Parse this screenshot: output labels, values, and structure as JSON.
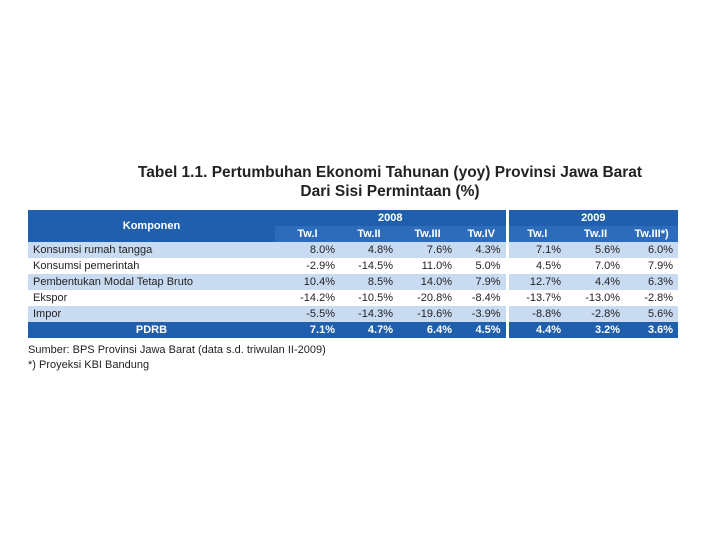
{
  "header": {
    "title_line1": "Tabel 1.1. Pertumbuhan Ekonomi Tahunan (yoy) Provinsi Jawa Barat",
    "title_line2": "Dari Sisi Permintaan (%)"
  },
  "table": {
    "stub_header": "Komponen",
    "groups": [
      {
        "label": "2008",
        "span": 4
      },
      {
        "label": "2009",
        "span": 3
      }
    ],
    "columns": [
      "Tw.I",
      "Tw.II",
      "Tw.III",
      "Tw.IV",
      "Tw.I",
      "Tw.II",
      "Tw.III*)"
    ],
    "rows": [
      [
        "Konsumsi rumah tangga",
        "8.0%",
        "4.8%",
        "7.6%",
        "4.3%",
        "7.1%",
        "5.6%",
        "6.0%"
      ],
      [
        "Konsumsi pemerintah",
        "-2.9%",
        "-14.5%",
        "11.0%",
        "5.0%",
        "4.5%",
        "7.0%",
        "7.9%"
      ],
      [
        "Pembentukan Modal Tetap Bruto",
        "10.4%",
        "8.5%",
        "14.0%",
        "7.9%",
        "12.7%",
        "4.4%",
        "6.3%"
      ],
      [
        "Ekspor",
        "-14.2%",
        "-10.5%",
        "-20.8%",
        "-8.4%",
        "-13.7%",
        "-13.0%",
        "-2.8%"
      ],
      [
        "Impor",
        "-5.5%",
        "-14.3%",
        "-19.6%",
        "-3.9%",
        "-8.8%",
        "-2.8%",
        "5.6%"
      ]
    ],
    "total": [
      "PDRB",
      "7.1%",
      "4.7%",
      "6.4%",
      "4.5%",
      "4.4%",
      "3.2%",
      "3.6%"
    ]
  },
  "notes": [
    "Sumber: BPS Provinsi Jawa Barat (data s.d. triwulan II-2009)",
    "*) Proyeksi KBI Bandung"
  ]
}
